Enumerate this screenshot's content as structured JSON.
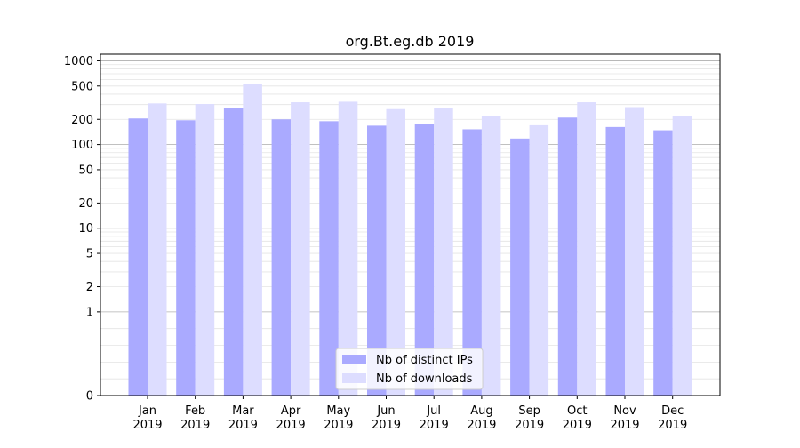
{
  "chart_data": {
    "type": "bar",
    "title": "org.Bt.eg.db 2019",
    "xlabel": "",
    "ylabel": "",
    "y_scale": "symlog",
    "ylim": [
      0,
      1200
    ],
    "y_ticks": [
      0,
      1,
      2,
      5,
      10,
      20,
      50,
      100,
      200,
      500,
      1000
    ],
    "y_tick_labels": [
      "0",
      "1",
      "2",
      "5",
      "10",
      "20",
      "50",
      "100",
      "200",
      "500",
      "1000"
    ],
    "categories": [
      "Jan",
      "Feb",
      "Mar",
      "Apr",
      "May",
      "Jun",
      "Jul",
      "Aug",
      "Sep",
      "Oct",
      "Nov",
      "Dec"
    ],
    "category_year": "2019",
    "series": [
      {
        "name": "Nb of distinct IPs",
        "color": "#aaaaff",
        "values": [
          205,
          195,
          270,
          200,
          190,
          168,
          178,
          152,
          118,
          210,
          162,
          148
        ]
      },
      {
        "name": "Nb of downloads",
        "color": "#ddddff",
        "values": [
          310,
          305,
          530,
          320,
          325,
          265,
          275,
          218,
          170,
          320,
          280,
          218
        ]
      }
    ],
    "legend_position": "bottom-center",
    "grid": true
  }
}
